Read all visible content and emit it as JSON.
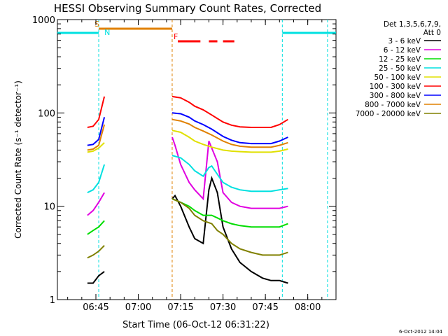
{
  "chart_data": {
    "type": "line",
    "title": "HESSI Observing Summary Count Rates, Corrected",
    "xlabel": "Start Time (06-Oct-12 06:31:22)",
    "ylabel": "Corrected Count Rate (s⁻¹ detector⁻¹)",
    "yscale": "log",
    "xlim": [
      "06:31:22",
      "08:10:00"
    ],
    "ylim": [
      1,
      1000
    ],
    "x_ticks": [
      "06:45",
      "07:00",
      "07:15",
      "07:30",
      "07:45",
      "08:00"
    ],
    "y_ticks": [
      "1",
      "10",
      "100",
      "1000"
    ],
    "legend_header": [
      "Det 1,3,5,6,7,9,",
      "Att 0"
    ],
    "legend_position": "right",
    "series": [
      {
        "name": "3 - 6 keV",
        "color": "#000000",
        "x": [
          "06:42",
          "06:44",
          "06:46",
          "06:48",
          "07:12",
          "07:13",
          "07:15",
          "07:18",
          "07:20",
          "07:23",
          "07:25",
          "07:26",
          "07:28",
          "07:30",
          "07:33",
          "07:36",
          "07:40",
          "07:44",
          "07:47",
          "07:50",
          "07:53"
        ],
        "y": [
          1.5,
          1.5,
          1.8,
          2.0,
          12,
          13,
          10,
          6,
          4.5,
          4.0,
          15,
          20,
          14,
          6,
          3.5,
          2.5,
          2.0,
          1.7,
          1.6,
          1.6,
          1.5
        ]
      },
      {
        "name": "6 - 12 keV",
        "color": "#e000e0",
        "x": [
          "06:42",
          "06:44",
          "06:46",
          "06:48",
          "07:12",
          "07:13",
          "07:15",
          "07:18",
          "07:20",
          "07:23",
          "07:25",
          "07:26",
          "07:28",
          "07:30",
          "07:33",
          "07:36",
          "07:40",
          "07:44",
          "07:47",
          "07:50",
          "07:53"
        ],
        "y": [
          8,
          9,
          11,
          14,
          55,
          45,
          28,
          18,
          15,
          12,
          50,
          42,
          30,
          14,
          11,
          10,
          9.5,
          9.5,
          9.5,
          9.5,
          10
        ]
      },
      {
        "name": "12 - 25 keV",
        "color": "#00dd00",
        "x": [
          "06:42",
          "06:44",
          "06:46",
          "06:48",
          "07:12",
          "07:15",
          "07:18",
          "07:20",
          "07:23",
          "07:26",
          "07:28",
          "07:30",
          "07:33",
          "07:36",
          "07:40",
          "07:44",
          "07:47",
          "07:50",
          "07:53"
        ],
        "y": [
          5,
          5.5,
          6,
          7,
          12,
          11,
          10,
          9,
          8,
          8,
          7.5,
          7,
          6.5,
          6.2,
          6.0,
          6.0,
          6.0,
          6.0,
          6.5
        ]
      },
      {
        "name": "25 - 50 keV",
        "color": "#00e0e0",
        "x": [
          "06:42",
          "06:44",
          "06:46",
          "06:48",
          "07:12",
          "07:15",
          "07:18",
          "07:20",
          "07:23",
          "07:25",
          "07:26",
          "07:28",
          "07:30",
          "07:33",
          "07:36",
          "07:40",
          "07:44",
          "07:47",
          "07:50",
          "07:53"
        ],
        "y": [
          14,
          15,
          18,
          28,
          35,
          33,
          28,
          24,
          21,
          26,
          27,
          22,
          18,
          16,
          15,
          14.5,
          14.5,
          14.5,
          15,
          15.5
        ]
      },
      {
        "name": "50 - 100 keV",
        "color": "#e0e000",
        "x": [
          "06:42",
          "06:44",
          "06:46",
          "06:48",
          "07:12",
          "07:15",
          "07:18",
          "07:20",
          "07:23",
          "07:26",
          "07:30",
          "07:33",
          "07:36",
          "07:40",
          "07:44",
          "07:47",
          "07:50",
          "07:53"
        ],
        "y": [
          38,
          39,
          42,
          48,
          65,
          62,
          55,
          50,
          46,
          43,
          40,
          39,
          38.5,
          38,
          38,
          38,
          39,
          41
        ]
      },
      {
        "name": "100 - 300 keV",
        "color": "#ff0000",
        "x": [
          "06:42",
          "06:44",
          "06:46",
          "06:48",
          "07:12",
          "07:15",
          "07:18",
          "07:20",
          "07:23",
          "07:26",
          "07:30",
          "07:33",
          "07:36",
          "07:40",
          "07:44",
          "07:47",
          "07:50",
          "07:53"
        ],
        "y": [
          70,
          72,
          85,
          150,
          150,
          145,
          130,
          118,
          108,
          95,
          80,
          74,
          71,
          70,
          70,
          70,
          75,
          85
        ]
      },
      {
        "name": "300 - 800 keV",
        "color": "#0000ff",
        "x": [
          "06:42",
          "06:44",
          "06:46",
          "06:48",
          "07:12",
          "07:15",
          "07:18",
          "07:20",
          "07:23",
          "07:26",
          "07:30",
          "07:33",
          "07:36",
          "07:40",
          "07:44",
          "07:47",
          "07:50",
          "07:53"
        ],
        "y": [
          45,
          46,
          52,
          90,
          100,
          98,
          90,
          82,
          75,
          67,
          56,
          51,
          48,
          47,
          47,
          47,
          50,
          55
        ]
      },
      {
        "name": "800 - 7000 keV",
        "color": "#e08000",
        "x": [
          "06:42",
          "06:44",
          "06:46",
          "06:48",
          "07:12",
          "07:15",
          "07:18",
          "07:20",
          "07:23",
          "07:26",
          "07:30",
          "07:33",
          "07:36",
          "07:40",
          "07:44",
          "07:47",
          "07:50",
          "07:53"
        ],
        "y": [
          40,
          41,
          45,
          75,
          85,
          82,
          76,
          70,
          64,
          58,
          50,
          46,
          44,
          43,
          43,
          43,
          45,
          48
        ]
      },
      {
        "name": "7000 - 20000 keV",
        "color": "#808000",
        "x": [
          "06:42",
          "06:44",
          "06:46",
          "06:48",
          "07:12",
          "07:15",
          "07:18",
          "07:20",
          "07:23",
          "07:26",
          "07:28",
          "07:30",
          "07:33",
          "07:36",
          "07:40",
          "07:44",
          "07:47",
          "07:50",
          "07:53"
        ],
        "y": [
          2.8,
          3.0,
          3.3,
          3.8,
          12,
          11,
          9.5,
          8,
          7,
          6.5,
          5.5,
          5,
          4,
          3.5,
          3.2,
          3.0,
          3.0,
          3.0,
          3.2
        ]
      }
    ],
    "state_bars": [
      {
        "label": "",
        "color": "#00e0e0",
        "segments": [
          [
            "06:31:22",
            "06:46"
          ],
          [
            "07:51",
            "08:10"
          ]
        ]
      },
      {
        "label": "S",
        "color": "#e08000",
        "segments": [
          [
            "06:46",
            "07:12"
          ]
        ]
      },
      {
        "label": "F",
        "color": "#ff0000",
        "segments": [
          [
            "07:14",
            "07:22"
          ],
          [
            "07:25",
            "07:28"
          ],
          [
            "07:30",
            "07:34"
          ]
        ]
      }
    ],
    "state_markers": [
      {
        "label": "N",
        "color": "#00e0e0",
        "x": "06:47"
      }
    ],
    "vlines": [
      {
        "x": "06:46",
        "color": "#00e0e0"
      },
      {
        "x": "07:12",
        "color": "#e08000"
      },
      {
        "x": "07:51",
        "color": "#00e0e0"
      },
      {
        "x": "08:07",
        "color": "#00e0e0"
      }
    ],
    "footer_date": "6-Oct-2012 14:04"
  }
}
